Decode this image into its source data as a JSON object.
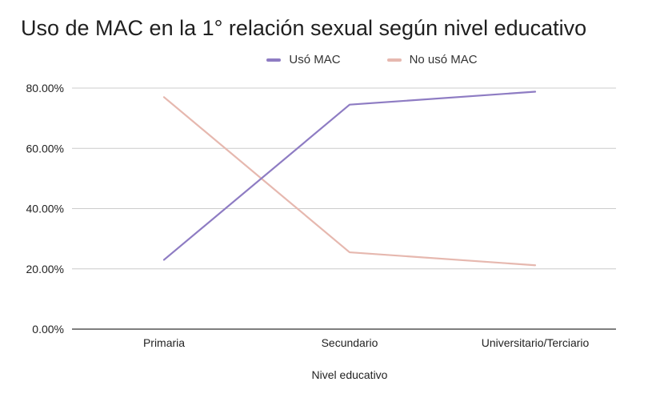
{
  "chart_data": {
    "type": "line",
    "title": "Uso de MAC en la 1° relación sexual según nivel educativo",
    "xlabel": "Nivel educativo",
    "ylabel": "",
    "categories": [
      "Primaria",
      "Secundario",
      "Universitario/Terciario"
    ],
    "ylim": [
      0,
      0.8
    ],
    "yticks": [
      "0.00%",
      "20.00%",
      "40.00%",
      "60.00%",
      "80.00%"
    ],
    "ytick_values": [
      0,
      0.2,
      0.4,
      0.6,
      0.8
    ],
    "grid": true,
    "legend_position": "top",
    "series": [
      {
        "name": "Usó MAC",
        "color": "#8e7cc3",
        "values": [
          0.23,
          0.745,
          0.788
        ]
      },
      {
        "name": "No usó MAC",
        "color": "#e6b8af",
        "values": [
          0.77,
          0.255,
          0.212
        ]
      }
    ]
  }
}
